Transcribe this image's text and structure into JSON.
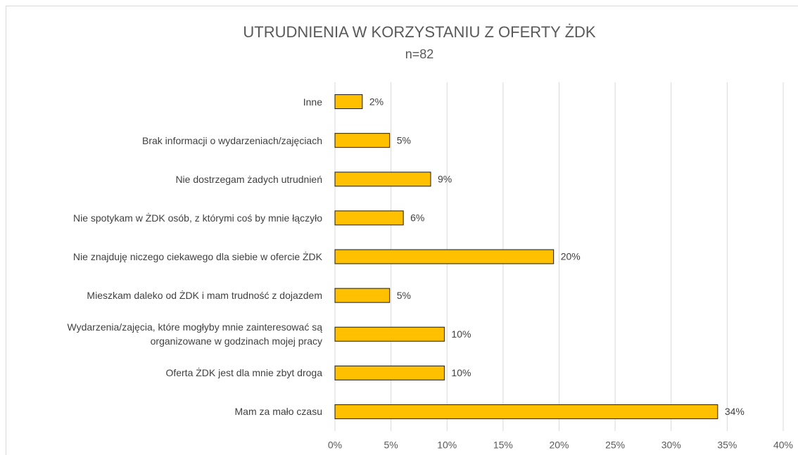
{
  "chart_data": {
    "type": "bar",
    "orientation": "horizontal",
    "title": "UTRUDNIENIA  W KORZYSTANIU Z OFERTY ŻDK",
    "subtitle": "n=82",
    "categories": [
      "Inne",
      "Brak informacji o wydarzeniach/zajęciach",
      "Nie dostrzegam żadych utrudnień",
      "Nie spotykam w ŻDK osób, z którymi coś by mnie łączyło",
      "Nie znajduję niczego ciekawego dla siebie w ofercie ŻDK",
      "Mieszkam daleko od ŻDK i mam trudność z dojazdem",
      "Wydarzenia/zajęcia, które mogłyby mnie zainteresować są\norganizowane w godzinach mojej pracy",
      "Oferta ŻDK jest dla mnie zbyt droga",
      "Mam za mało czasu"
    ],
    "values": [
      2.44,
      4.88,
      8.54,
      6.1,
      19.51,
      4.88,
      9.76,
      9.76,
      34.15
    ],
    "value_labels": [
      "2%",
      "5%",
      "9%",
      "6%",
      "20%",
      "5%",
      "10%",
      "10%",
      "34%"
    ],
    "color": "#ffc000",
    "xlim": [
      0,
      40
    ],
    "xticks": [
      {
        "value": 0,
        "label": "0%"
      },
      {
        "value": 5,
        "label": "5%"
      },
      {
        "value": 10,
        "label": "10%"
      },
      {
        "value": 15,
        "label": "15%"
      },
      {
        "value": 20,
        "label": "20%"
      },
      {
        "value": 25,
        "label": "25%"
      },
      {
        "value": 30,
        "label": "30%"
      },
      {
        "value": 35,
        "label": "35%"
      },
      {
        "value": 40,
        "label": "40%"
      }
    ],
    "grid": true
  }
}
